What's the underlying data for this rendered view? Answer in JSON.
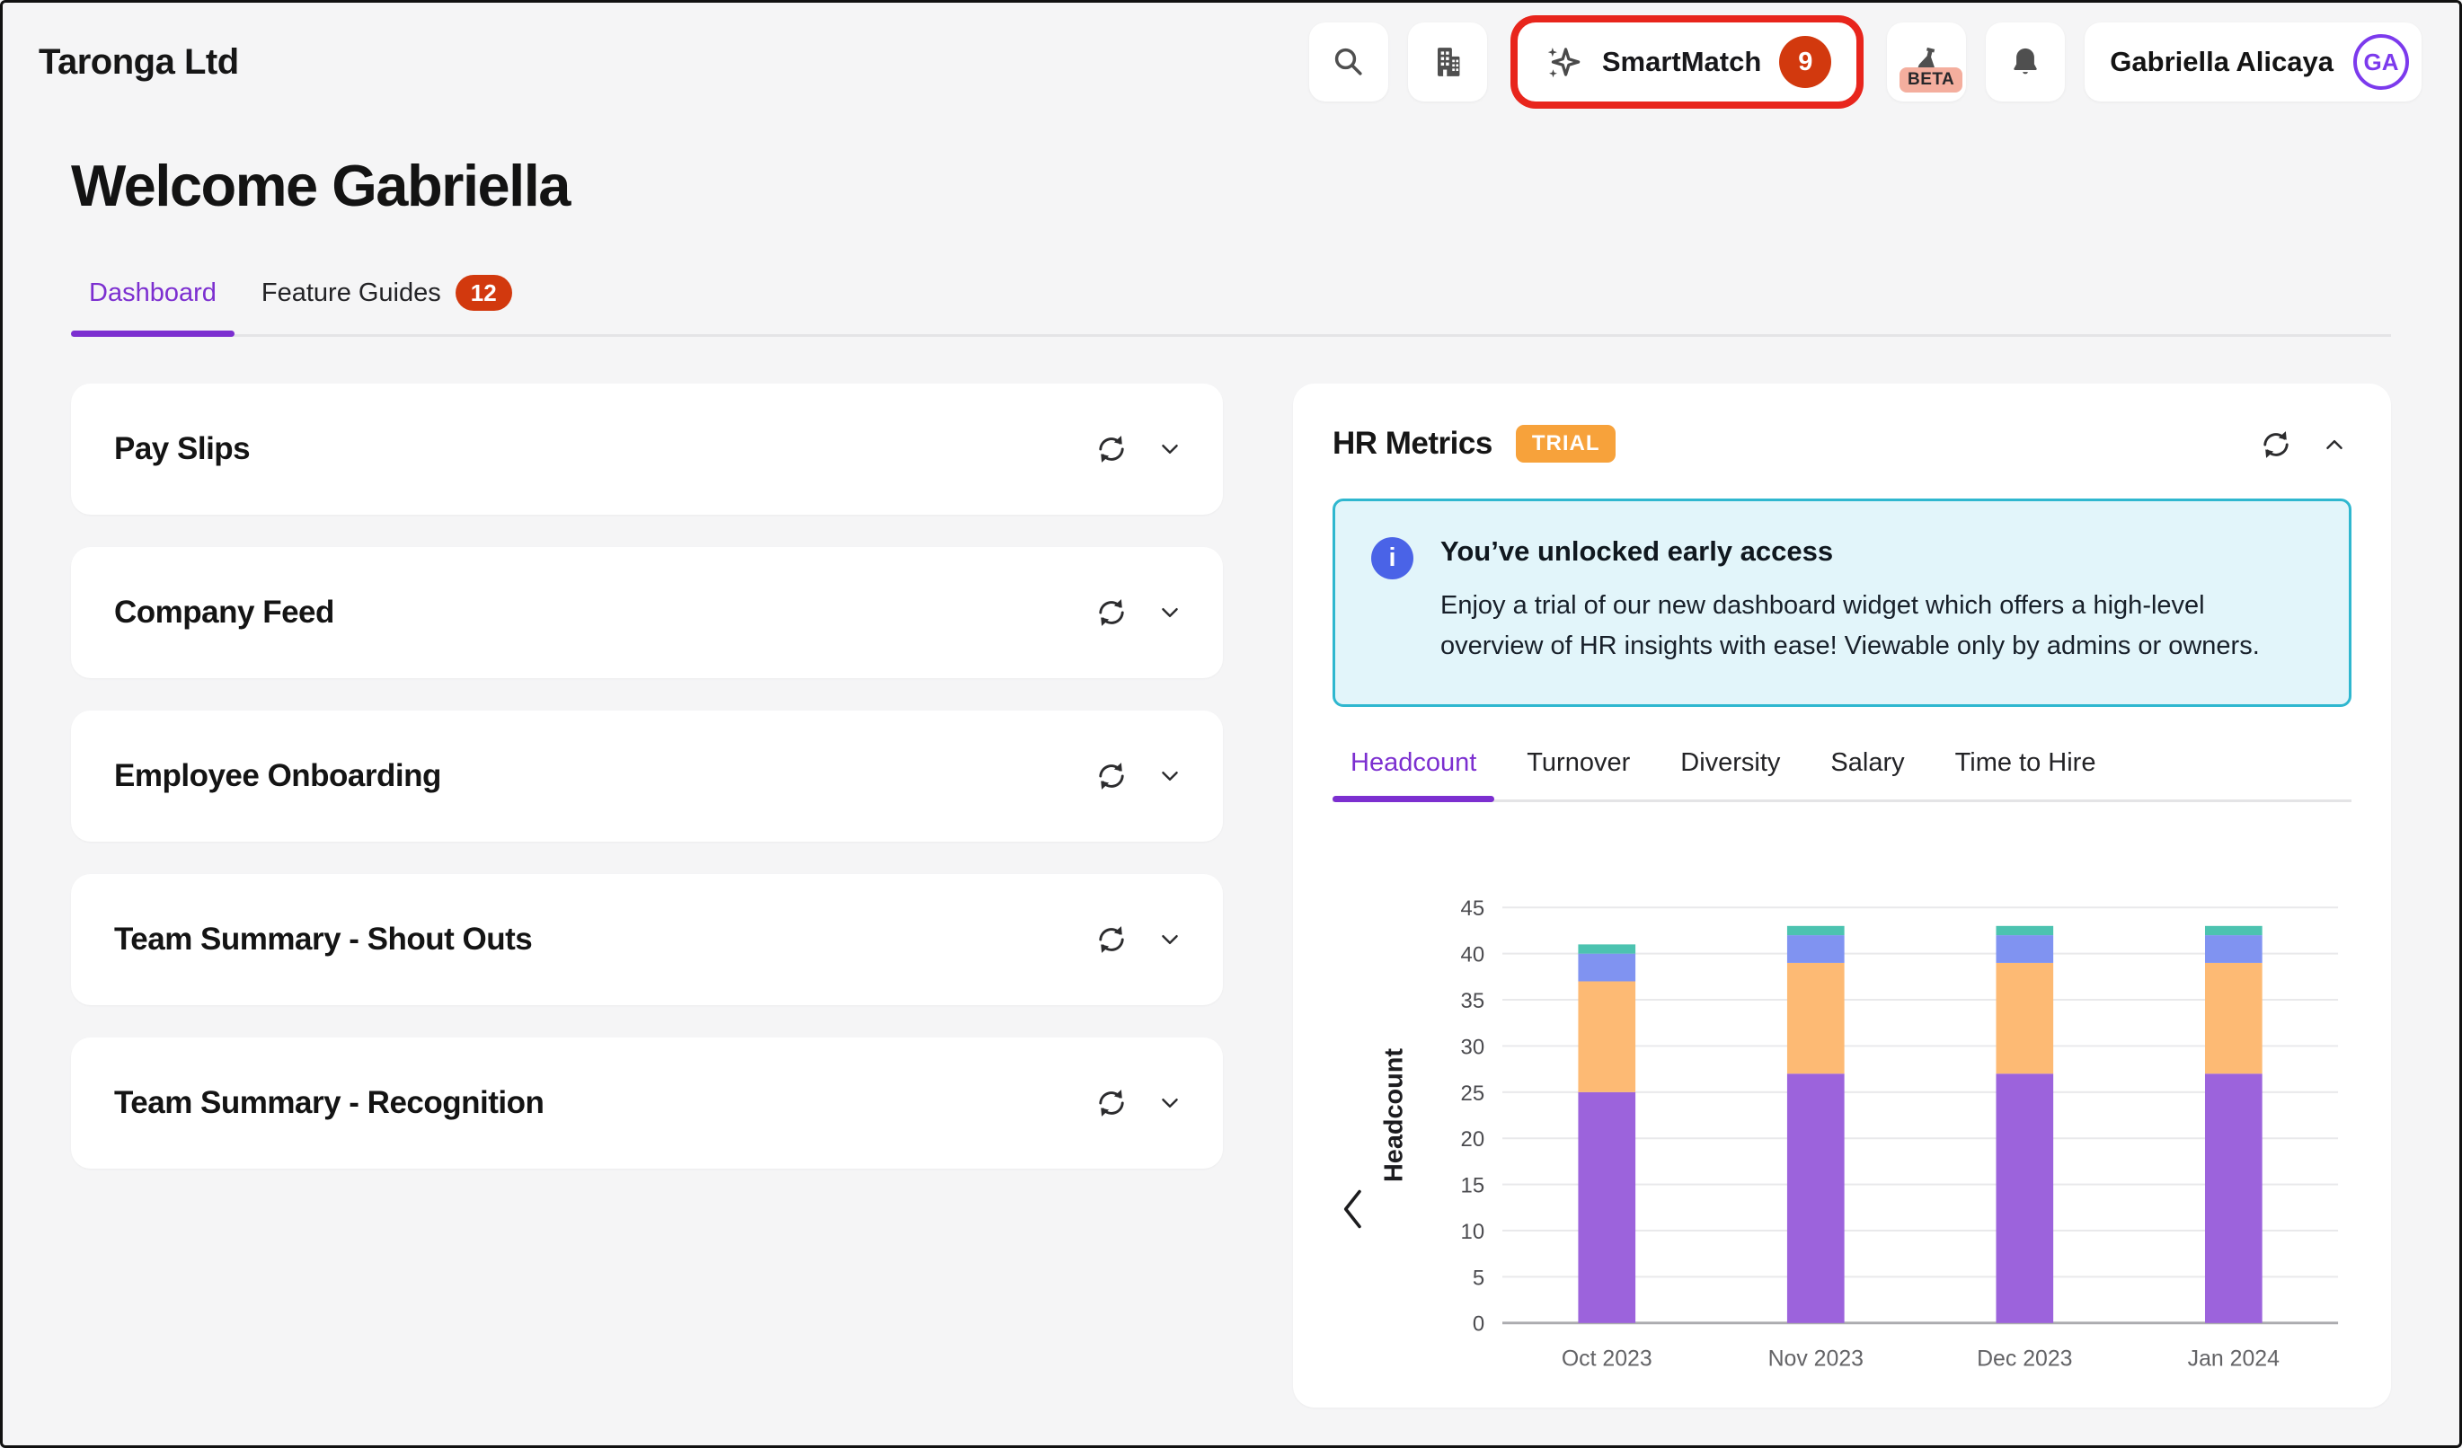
{
  "header": {
    "company_name": "Taronga Ltd",
    "smartmatch": {
      "label": "SmartMatch",
      "badge": "9"
    },
    "beta_label": "BETA",
    "user": {
      "name": "Gabriella Alicaya",
      "initials": "GA"
    }
  },
  "page": {
    "welcome_title": "Welcome Gabriella",
    "tabs": [
      {
        "label": "Dashboard",
        "active": true
      },
      {
        "label": "Feature Guides",
        "badge": "12"
      }
    ]
  },
  "widgets": [
    {
      "title": "Pay Slips"
    },
    {
      "title": "Company Feed"
    },
    {
      "title": "Employee Onboarding"
    },
    {
      "title": "Team Summary - Shout Outs"
    },
    {
      "title": "Team Summary - Recognition"
    }
  ],
  "hr_metrics": {
    "title": "HR Metrics",
    "badge": "TRIAL",
    "banner": {
      "title": "You’ve unlocked early access",
      "body": "Enjoy a trial of our new dashboard widget which offers a high-level overview of HR insights with ease! Viewable only by admins or owners."
    },
    "tabs": [
      "Headcount",
      "Turnover",
      "Diversity",
      "Salary",
      "Time to Hire"
    ],
    "active_tab": "Headcount"
  },
  "chart_data": {
    "type": "bar",
    "stacked": true,
    "title": "",
    "xlabel": "",
    "ylabel": "Headcount",
    "ylim": [
      0,
      45
    ],
    "ytick_step": 5,
    "grid": true,
    "legend_visible": false,
    "categories": [
      "Oct 2023",
      "Nov 2023",
      "Dec 2023",
      "Jan 2024"
    ],
    "series": [
      {
        "name": "segment-purple",
        "color": "#9c63dc",
        "values": [
          25,
          27,
          27,
          27
        ]
      },
      {
        "name": "segment-orange",
        "color": "#fdba74",
        "values": [
          12,
          12,
          12,
          12
        ]
      },
      {
        "name": "segment-blue",
        "color": "#8093f1",
        "values": [
          3,
          3,
          3,
          3
        ]
      },
      {
        "name": "segment-teal",
        "color": "#4cc3b0",
        "values": [
          1,
          1,
          1,
          1
        ]
      }
    ],
    "totals": [
      41,
      43,
      43,
      43
    ]
  },
  "colors": {
    "accent_purple": "#7c2fd0",
    "avatar_purple": "#7c3aed",
    "badge_red": "#d2390e",
    "highlight_ring_red": "#e8251c",
    "trial_orange": "#f7a23b",
    "banner_bg": "#e2f5fa",
    "banner_border": "#2fb7cf",
    "info_blue": "#4a63e7",
    "beta_salmon": "#f4ae9e",
    "page_bg": "#f5f5f6"
  },
  "icons": {
    "search": "magnifying-glass",
    "organisation": "buildings",
    "smartmatch": "ai-sparkle",
    "beta": "lab-flask",
    "notifications": "bell",
    "refresh": "sync-circular-arrows",
    "expand": "chevron-down",
    "collapse": "chevron-up",
    "previous": "chevron-left",
    "info": "i-circle"
  }
}
